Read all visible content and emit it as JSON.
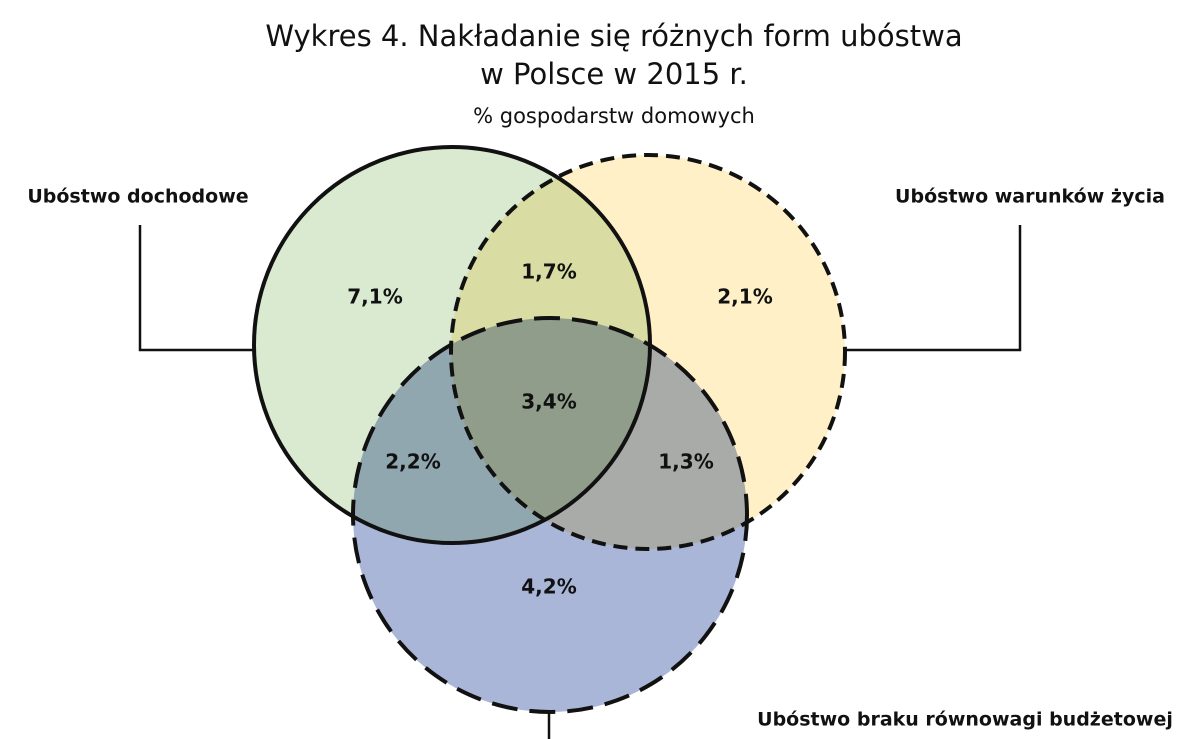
{
  "chart_data": {
    "type": "venn",
    "title": [
      "Wykres 4. Nakładanie się różnych form ubóstwa",
      "w Polsce w 2015 r."
    ],
    "subtitle": "% gospodarstw domowych",
    "sets": [
      {
        "name": "Ubóstwo dochodowe",
        "color": "#d9ead0"
      },
      {
        "name": "Ubóstwo warunków życia",
        "color": "#fff0c8"
      },
      {
        "name": "Ubóstwo braku równowagi budżetowej",
        "color": "#a9b6d8"
      }
    ],
    "values": [
      7.1,
      2.1,
      4.2,
      1.7,
      2.2,
      1.3,
      3.4
    ],
    "value_labels": [
      "7,1%",
      "2,1%",
      "4,2%",
      "1,7%",
      "2,2%",
      "1,3%",
      "3,4%"
    ]
  }
}
